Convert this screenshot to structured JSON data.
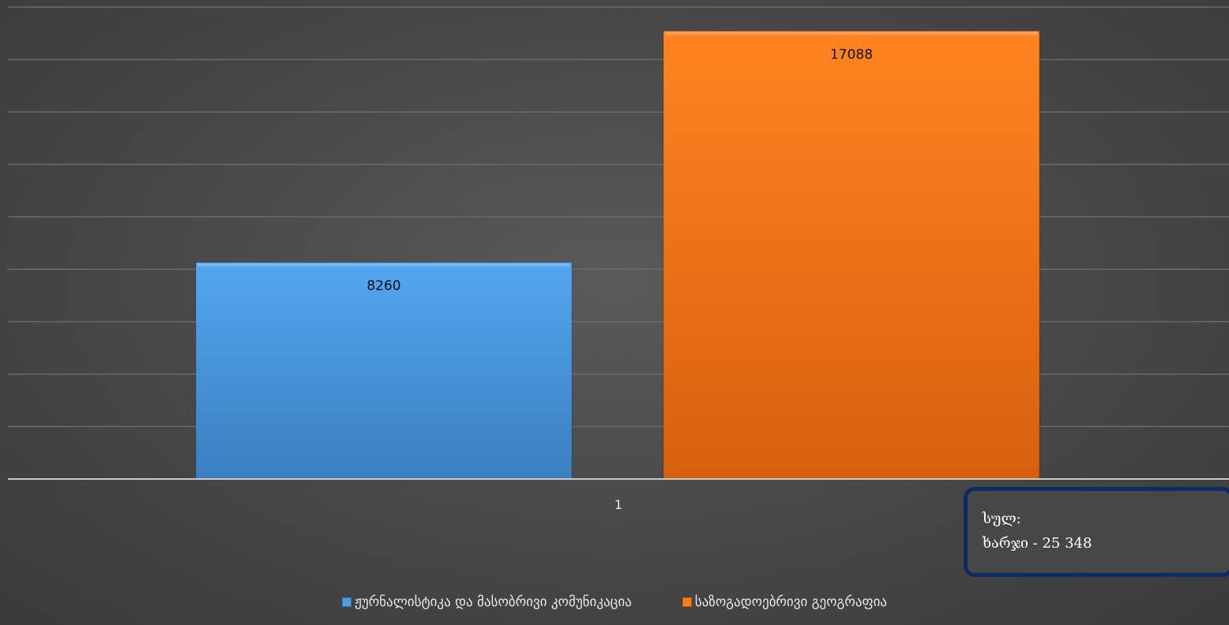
{
  "chart_data": {
    "type": "bar",
    "categories": [
      "1"
    ],
    "series": [
      {
        "name": "ჟურნალისტიკა და მასობრივი კომუნიკაცია",
        "values": [
          8260
        ],
        "color": "#4a9ee8"
      },
      {
        "name": "საზოგადოებრივი გეოგრაფია",
        "values": [
          17088
        ],
        "color": "#fb7d1a"
      }
    ],
    "data_labels": [
      "8260",
      "17088"
    ],
    "ylim": [
      0,
      18000
    ],
    "grid": true,
    "legend_position": "bottom"
  },
  "annotation": {
    "line1": "სულ:",
    "line2": "ხარჯი - 25 348"
  }
}
